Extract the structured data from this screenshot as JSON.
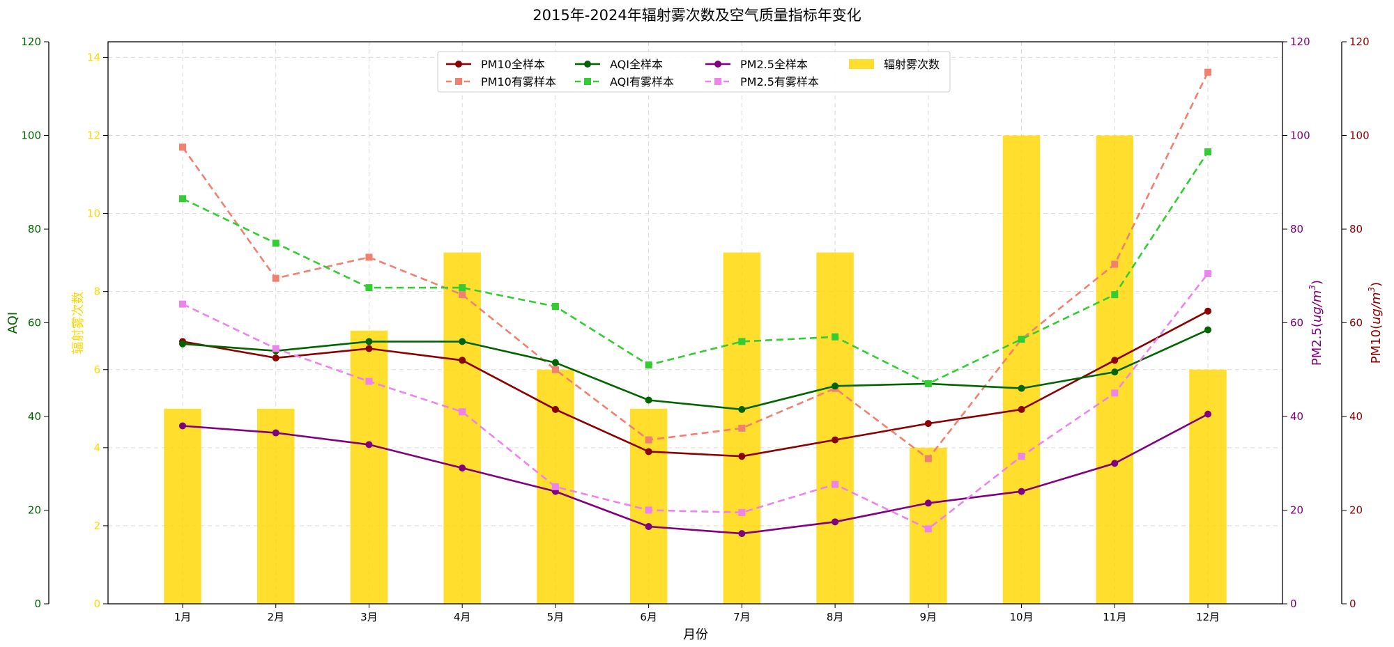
{
  "chart_data": {
    "type": "bar+line",
    "title": "2015年-2024年辐射雾次数及空气质量指标年变化",
    "xlabel": "月份",
    "categories": [
      "1月",
      "2月",
      "3月",
      "4月",
      "5月",
      "6月",
      "7月",
      "8月",
      "9月",
      "10月",
      "11月",
      "12月"
    ],
    "bars": {
      "name": "辐射雾次数",
      "color": "#FFD700",
      "values": [
        5,
        5,
        7,
        9,
        6,
        5,
        9,
        9,
        4,
        12,
        12,
        6
      ]
    },
    "axes": {
      "aqi": {
        "label": "AQI",
        "color": "#006400",
        "range": [
          0,
          120
        ],
        "ticks": [
          "0",
          "20",
          "40",
          "60",
          "80",
          "100",
          "120"
        ]
      },
      "fog": {
        "label": "辐射雾次数",
        "color": "#FFD700",
        "range": [
          0,
          14.4
        ],
        "ticks": [
          "0",
          "2",
          "4",
          "6",
          "8",
          "10",
          "12",
          "14"
        ]
      },
      "pm25": {
        "label_prefix": "PM2.5(",
        "label_unit": "ug/m",
        "label_exp": "3",
        "label_suffix": ")",
        "color": "#800080",
        "range": [
          0,
          120
        ],
        "ticks": [
          "0",
          "20",
          "40",
          "60",
          "80",
          "100",
          "120"
        ]
      },
      "pm10": {
        "label_prefix": "PM10(",
        "label_unit": "ug/m",
        "label_exp": "3",
        "label_suffix": ")",
        "color": "#8B0000",
        "range": [
          0,
          120
        ],
        "ticks": [
          "0",
          "20",
          "40",
          "60",
          "80",
          "100",
          "120"
        ]
      }
    },
    "series": [
      {
        "name": "PM10全样本",
        "axis": "pm10",
        "style": "solid",
        "marker": "circle",
        "color": "#8B0000",
        "values": [
          56,
          52.5,
          54.5,
          52,
          41.5,
          32.5,
          31.5,
          35,
          38.5,
          41.5,
          52,
          62.5
        ]
      },
      {
        "name": "PM10有雾样本",
        "axis": "pm10",
        "style": "dashed",
        "marker": "square",
        "color": "#F08070",
        "values": [
          97.5,
          69.5,
          74,
          66,
          50,
          35,
          37.5,
          46,
          31,
          56.5,
          72.5,
          113.5
        ]
      },
      {
        "name": "AQI全样本",
        "axis": "aqi",
        "style": "solid",
        "marker": "circle",
        "color": "#006400",
        "values": [
          55.5,
          54,
          56,
          56,
          51.5,
          43.5,
          41.5,
          46.5,
          47,
          46,
          49.5,
          58.5
        ]
      },
      {
        "name": "AQI有雾样本",
        "axis": "aqi",
        "style": "dashed",
        "marker": "square",
        "color": "#32CD32",
        "values": [
          86.5,
          77,
          67.5,
          67.5,
          63.5,
          51,
          56,
          57,
          47,
          56.5,
          66,
          96.5
        ]
      },
      {
        "name": "PM2.5全样本",
        "axis": "pm25",
        "style": "solid",
        "marker": "circle",
        "color": "#800080",
        "values": [
          38,
          36.5,
          34,
          29,
          24,
          16.5,
          15,
          17.5,
          21.5,
          24,
          30,
          40.5
        ]
      },
      {
        "name": "PM2.5有雾样本",
        "axis": "pm25",
        "style": "dashed",
        "marker": "square",
        "color": "#EE82EE",
        "values": [
          64,
          54.5,
          47.5,
          41,
          25,
          20,
          19.5,
          25.5,
          16,
          31.5,
          45,
          70.5
        ]
      }
    ],
    "legend_order": [
      "PM10全样本",
      "AQI全样本",
      "PM2.5全样本",
      "辐射雾次数",
      "PM10有雾样本",
      "AQI有雾样本",
      "PM2.5有雾样本"
    ],
    "legend_placement": "top-center",
    "grid": true
  }
}
